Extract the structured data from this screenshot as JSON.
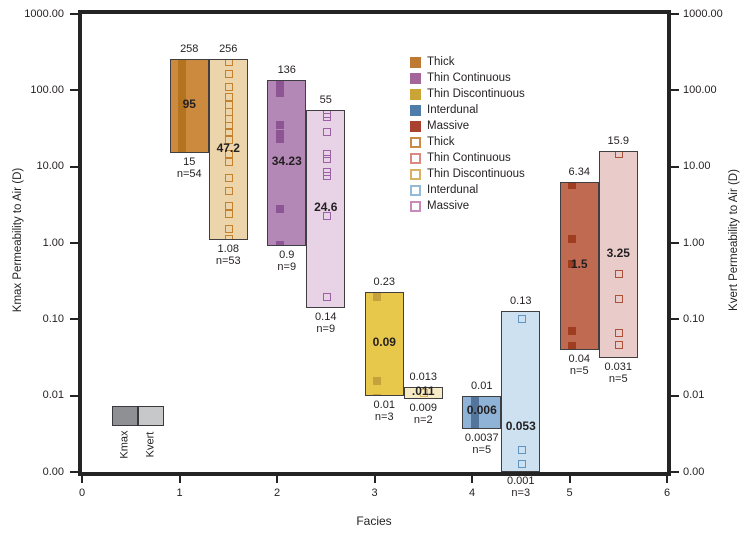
{
  "chart_data": {
    "type": "bar",
    "variant": "floating-range-bars-with-point-markers",
    "title": "",
    "xlabel": "Facies",
    "ylabel_left": "Kmax Permeability to Air (D)",
    "ylabel_right": "Kvert Permeability to Air (D)",
    "xlim": [
      0,
      6
    ],
    "ylim": [
      0.001,
      1000
    ],
    "yscale": "log",
    "grid": false,
    "legend_position": "upper-right-inside",
    "x_ticks": [
      "0",
      "1",
      "2",
      "3",
      "4",
      "5",
      "6"
    ],
    "y_ticks": [
      {
        "v": 1000,
        "label": "1000.00"
      },
      {
        "v": 100,
        "label": "100.00"
      },
      {
        "v": 10,
        "label": "10.00"
      },
      {
        "v": 1,
        "label": "1.00"
      },
      {
        "v": 0.1,
        "label": "0.10"
      },
      {
        "v": 0.01,
        "label": "0.01"
      },
      {
        "v": 0.001,
        "label": "0.00"
      }
    ],
    "legend": [
      {
        "label": "Thick",
        "style": "filled",
        "color": "#BE7A33"
      },
      {
        "label": "Thin Continuous",
        "style": "filled",
        "color": "#A4659B"
      },
      {
        "label": "Thin Discontinuous",
        "style": "filled",
        "color": "#CBA437"
      },
      {
        "label": "Interdunal",
        "style": "filled",
        "color": "#4F7DA9"
      },
      {
        "label": "Massive",
        "style": "filled",
        "color": "#AA4230"
      },
      {
        "label": "Thick",
        "style": "outline",
        "color": "#C98B45"
      },
      {
        "label": "Thin Continuous",
        "style": "outline",
        "color": "#DA8A7E"
      },
      {
        "label": "Thin Discontinuous",
        "style": "outline",
        "color": "#D8B264"
      },
      {
        "label": "Interdunal",
        "style": "outline",
        "color": "#94BAD8"
      },
      {
        "label": "Massive",
        "style": "outline",
        "color": "#C78AB9"
      }
    ],
    "bars": [
      {
        "facies": 1,
        "kind": "Kmax",
        "unit_class": "Thick",
        "max": 258,
        "mid": 95,
        "min": 15,
        "n": 54,
        "max_label": "258",
        "mid_label": "95",
        "min_label": "15",
        "n_label": "n=54",
        "fill": "#CC8A3E",
        "marker_color": "#B4731F",
        "marker_style": "filled",
        "points": [
          250,
          215,
          185,
          160,
          140,
          120,
          105,
          88,
          75,
          62,
          52,
          44,
          37,
          30,
          25,
          20,
          17
        ]
      },
      {
        "facies": 1,
        "kind": "Kvert",
        "unit_class": "Thick",
        "max": 256,
        "mid": 47.2,
        "min": 1.08,
        "n": 53,
        "max_label": "256",
        "mid_label": "47.2",
        "min_label": "1.08",
        "n_label": "n=53",
        "fill": "#ECD4AB",
        "marker_color": "#C4802C",
        "marker_style": "outline",
        "points": [
          242,
          169,
          114,
          84,
          66,
          54,
          44,
          35,
          29,
          23,
          15,
          12,
          7.4,
          4.9,
          3.1,
          2.5,
          1.55,
          1.15
        ]
      },
      {
        "facies": 2,
        "kind": "Kmax",
        "unit_class": "Thin Continuous",
        "max": 136,
        "mid": 34.23,
        "min": 0.9,
        "n": 9,
        "max_label": "136",
        "mid_label": "34.23",
        "min_label": "0.9",
        "n_label": "n=9",
        "fill": "#B388B6",
        "marker_color": "#8D5593",
        "marker_style": "filled",
        "points": [
          120,
          95,
          36,
          28,
          24,
          2.9,
          0.98
        ]
      },
      {
        "facies": 2,
        "kind": "Kvert",
        "unit_class": "Thin Continuous",
        "max": 55,
        "mid": 24.6,
        "min": 0.14,
        "n": 9,
        "max_label": "55",
        "mid_label": "24.6",
        "min_label": "0.14",
        "n_label": "n=9",
        "fill": "#E7D3E5",
        "marker_color": "#9B5FA5",
        "marker_style": "outline",
        "points": [
          50,
          46,
          29.5,
          15,
          13,
          8.9,
          7.7,
          2.3,
          0.2
        ]
      },
      {
        "facies": 3,
        "kind": "Kmax",
        "unit_class": "Thin Discontinuous",
        "max": 0.23,
        "mid": 0.09,
        "min": 0.01,
        "n": 3,
        "max_label": "0.23",
        "mid_label": "0.09",
        "min_label": "0.01",
        "n_label": "n=3",
        "fill": "#E7C84A",
        "marker_color": "#C7A13C",
        "marker_style": "filled",
        "points": [
          0.2,
          0.016,
          0.0095
        ]
      },
      {
        "facies": 3,
        "kind": "Kvert",
        "unit_class": "Thin Discontinuous",
        "max": 0.013,
        "mid": 0.011,
        "min": 0.009,
        "n": 2,
        "max_label": "0.013",
        "mid_label": ".011",
        "min_label": "0.009",
        "n_label": "n=2",
        "fill": "#F7ECC6",
        "marker_color": "#D8B960",
        "marker_style": "outline",
        "points": [
          0.0112
        ]
      },
      {
        "facies": 4,
        "kind": "Kmax",
        "unit_class": "Interdunal",
        "max": 0.01,
        "mid": 0.006,
        "min": 0.0037,
        "n": 5,
        "max_label": "0.01",
        "mid_label": "0.006",
        "min_label": "0.0037",
        "n_label": "n=5",
        "fill": "#8FB3D6",
        "marker_color": "#54759B",
        "marker_style": "filled",
        "points": [
          0.0093,
          0.0078,
          0.0065,
          0.0052,
          0.0042
        ]
      },
      {
        "facies": 4,
        "kind": "Kvert",
        "unit_class": "Interdunal",
        "max": 0.13,
        "mid": 0.053,
        "min": 0.001,
        "n": 3,
        "max_label": "0.13",
        "mid_label": "0.053",
        "min_label": "0.001",
        "n_label": "n=3",
        "mid_frac": 0.73,
        "fill": "#CDE1F1",
        "marker_color": "#6094C1",
        "marker_style": "outline",
        "points": [
          0.105,
          0.002,
          0.0013
        ]
      },
      {
        "facies": 5,
        "kind": "Kmax",
        "unit_class": "Massive",
        "max": 6.34,
        "mid": 1.5,
        "min": 0.04,
        "n": 5,
        "max_label": "6.34",
        "mid_label": "1.5",
        "min_label": "0.04",
        "n_label": "n=5",
        "fill": "#C06A52",
        "marker_color": "#9E3D20",
        "marker_style": "filled",
        "points": [
          6.0,
          1.15,
          0.55,
          0.072,
          0.046
        ]
      },
      {
        "facies": 5,
        "kind": "Kvert",
        "unit_class": "Massive",
        "max": 15.9,
        "mid": 3.25,
        "min": 0.031,
        "n": 5,
        "max_label": "15.9",
        "mid_label": "3.25",
        "min_label": "0.031",
        "n_label": "n=5",
        "fill": "#E9CCCA",
        "marker_color": "#AD5038",
        "marker_style": "outline",
        "points": [
          15,
          0.41,
          0.19,
          0.068,
          0.047
        ]
      }
    ],
    "inset_legend": [
      {
        "label": "Kmax",
        "color": "#8F9093"
      },
      {
        "label": "Kvert",
        "color": "#C7C8CA"
      }
    ]
  }
}
